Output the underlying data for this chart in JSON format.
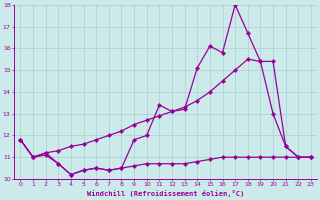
{
  "xlabel": "Windchill (Refroidissement éolien,°C)",
  "bg_color": "#cceaea",
  "grid_color": "#aacece",
  "line_color": "#990099",
  "xlim": [
    -0.5,
    23.5
  ],
  "ylim": [
    10.0,
    18.0
  ],
  "yticks": [
    10,
    11,
    12,
    13,
    14,
    15,
    16,
    17,
    18
  ],
  "xticks": [
    0,
    1,
    2,
    3,
    4,
    5,
    6,
    7,
    8,
    9,
    10,
    11,
    12,
    13,
    14,
    15,
    16,
    17,
    18,
    19,
    20,
    21,
    22,
    23
  ],
  "line1_x": [
    0,
    1,
    2,
    3,
    4,
    5,
    6,
    7,
    8,
    9,
    10,
    11,
    12,
    13,
    14,
    15,
    16,
    17,
    18,
    19,
    20,
    21,
    22,
    23
  ],
  "line1_y": [
    11.8,
    11.0,
    11.1,
    10.7,
    10.2,
    10.4,
    10.5,
    10.4,
    10.5,
    10.6,
    10.7,
    10.7,
    10.7,
    10.7,
    10.8,
    10.9,
    11.0,
    11.0,
    11.0,
    11.0,
    11.0,
    11.0,
    11.0,
    11.0
  ],
  "line2_x": [
    0,
    1,
    2,
    3,
    4,
    5,
    6,
    7,
    8,
    9,
    10,
    11,
    12,
    13,
    14,
    15,
    16,
    17,
    18,
    19,
    20,
    21,
    22,
    23
  ],
  "line2_y": [
    11.8,
    11.0,
    11.2,
    10.7,
    10.2,
    10.4,
    10.5,
    10.4,
    10.5,
    11.8,
    12.0,
    13.4,
    13.1,
    13.2,
    15.1,
    16.1,
    15.8,
    18.0,
    16.7,
    15.4,
    13.0,
    11.5,
    11.0,
    11.0
  ],
  "line3_x": [
    0,
    1,
    2,
    3,
    4,
    5,
    6,
    7,
    8,
    9,
    10,
    11,
    12,
    13,
    14,
    15,
    16,
    17,
    18,
    19,
    20,
    21,
    22,
    23
  ],
  "line3_y": [
    11.8,
    11.0,
    11.2,
    11.3,
    11.5,
    11.6,
    11.8,
    12.0,
    12.2,
    12.5,
    12.7,
    12.9,
    13.1,
    13.3,
    13.6,
    14.0,
    14.5,
    15.0,
    15.5,
    15.4,
    15.4,
    11.5,
    11.0,
    11.0
  ]
}
